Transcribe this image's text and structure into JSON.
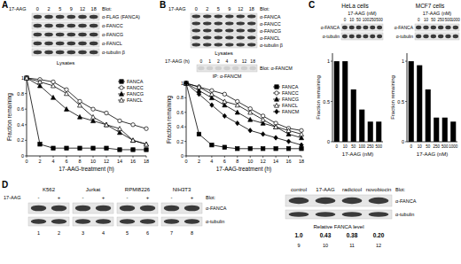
{
  "chart_data": [
    {
      "type": "line",
      "x_label": "17-AAG-treatment (h)",
      "y_label": "Fraction remaining",
      "x": [
        0,
        2,
        4,
        6,
        8,
        10,
        12,
        14,
        16,
        18
      ],
      "xlim": [
        0,
        18
      ],
      "xticks": [
        0,
        2,
        4,
        6,
        8,
        10,
        12,
        14,
        16,
        18
      ],
      "ylim": [
        0,
        1
      ],
      "yticks": [
        0,
        0.2,
        0.4,
        0.6,
        0.8,
        1
      ],
      "legend": "upper-right",
      "series": [
        {
          "name": "FANCA",
          "color": "#000000",
          "marker": "square",
          "line_style": "solid",
          "values": [
            1,
            0.15,
            0.1,
            0.1,
            0.1,
            0.1,
            0.1,
            0.08,
            0.08,
            0.08
          ]
        },
        {
          "name": "FANCC",
          "color": "#000000",
          "marker": "circle-open",
          "line_style": "solid",
          "values": [
            1,
            0.98,
            0.95,
            0.85,
            0.7,
            0.6,
            0.55,
            0.45,
            0.4,
            0.35
          ]
        },
        {
          "name": "FANCG",
          "color": "#000000",
          "marker": "triangle",
          "line_style": "solid",
          "values": [
            1,
            0.9,
            0.75,
            0.6,
            0.5,
            0.45,
            0.4,
            0.3,
            0.2,
            0.15
          ]
        },
        {
          "name": "FANCL",
          "color": "#000000",
          "marker": "triangle-open",
          "line_style": "solid",
          "values": [
            1,
            0.95,
            0.9,
            0.8,
            0.65,
            0.5,
            0.4,
            0.35,
            0.2,
            0.15
          ]
        }
      ]
    },
    {
      "type": "line",
      "x_label": "17-AAG-treatment (h)",
      "y_label": "Fraction remaining",
      "x": [
        0,
        2,
        4,
        6,
        8,
        10,
        12,
        14,
        16,
        18
      ],
      "xlim": [
        0,
        18
      ],
      "xticks": [
        0,
        2,
        4,
        6,
        8,
        10,
        12,
        14,
        16,
        18
      ],
      "ylim": [
        0,
        1
      ],
      "yticks": [
        0,
        0.2,
        0.4,
        0.6,
        0.8,
        1
      ],
      "legend": "upper-right",
      "series": [
        {
          "name": "FANCA",
          "color": "#000000",
          "marker": "square",
          "line_style": "solid",
          "values": [
            1,
            0.3,
            0.15,
            0.12,
            0.1,
            0.1,
            0.1,
            0.1,
            0.1,
            0.1
          ]
        },
        {
          "name": "FANCC",
          "color": "#000000",
          "marker": "circle-open",
          "line_style": "solid",
          "values": [
            1,
            0.95,
            0.9,
            0.85,
            0.75,
            0.65,
            0.55,
            0.45,
            0.38,
            0.35
          ]
        },
        {
          "name": "FANCG",
          "color": "#000000",
          "marker": "triangle",
          "line_style": "solid",
          "values": [
            1,
            0.9,
            0.8,
            0.7,
            0.6,
            0.5,
            0.45,
            0.4,
            0.3,
            0.25
          ]
        },
        {
          "name": "FANCL",
          "color": "#000000",
          "marker": "triangle-open",
          "line_style": "solid",
          "values": [
            1,
            0.95,
            0.85,
            0.75,
            0.7,
            0.6,
            0.5,
            0.4,
            0.35,
            0.3
          ]
        },
        {
          "name": "FANCM",
          "color": "#000000",
          "marker": "diamond",
          "line_style": "solid",
          "values": [
            1,
            0.85,
            0.7,
            0.55,
            0.45,
            0.35,
            0.3,
            0.25,
            0.2,
            0.15
          ]
        }
      ]
    },
    {
      "type": "bar",
      "title": "HeLa cells",
      "x_label": "17-AAG (nM)",
      "y_label": "Fraction remaining",
      "categories": [
        "0",
        "10",
        "50",
        "100",
        "250",
        "500"
      ],
      "values": [
        1,
        1,
        0.65,
        0.4,
        0.25,
        0.25
      ],
      "color": "#000000",
      "ylim": [
        0,
        1.1
      ],
      "yticks": [
        0,
        0.5,
        1
      ]
    },
    {
      "type": "bar",
      "title": "MCF7 cells",
      "x_label": "17-AAG (nM)",
      "y_label": "Fraction remaining",
      "categories": [
        "0",
        "10",
        "50",
        "250",
        "500",
        "1000"
      ],
      "values": [
        1,
        0.95,
        0.65,
        0.3,
        0.3,
        0.25
      ],
      "color": "#000000",
      "ylim": [
        0,
        1.1
      ],
      "yticks": [
        0,
        0.5,
        1
      ]
    }
  ],
  "panel_labels": [
    "A",
    "B",
    "C",
    "D"
  ],
  "blots": {
    "A": {
      "treatment": "17-AAG",
      "lanes": [
        "0",
        "2",
        "5",
        "9",
        "12",
        "18"
      ],
      "header": "Blot:",
      "rows": [
        "α-FLAG (FANCA)",
        "α-FANCC",
        "α-FANCG",
        "α-FANCL",
        "α-tubulin β"
      ],
      "footer": "Lysates"
    },
    "B": {
      "treatment": "17-AAG",
      "lanes": [
        "0",
        "2",
        "5",
        "9",
        "12",
        "18"
      ],
      "header": "Blot:",
      "rows": [
        "α-FANCA",
        "α-FANCC",
        "α-FANCG",
        "α-FANCL",
        "α-tubulin β"
      ],
      "footer": "Lysates",
      "ip": {
        "treatment": "17-AAG (h)",
        "lanes": [
          "0",
          "1",
          "2",
          "4",
          "8",
          "12",
          "18"
        ],
        "ip_label": "IP: α-FANCM",
        "blot_label": "Blot: α-FANCM"
      }
    },
    "C": [
      {
        "rows": [
          "α-FANCA",
          "α-tubulin"
        ]
      },
      {
        "rows": [
          "α-FANCA",
          "α-tubulin"
        ]
      }
    ],
    "D": {
      "treatment": "17-AAG",
      "cell_lines": [
        "K562",
        "Jurkat",
        "RPMI8226",
        "NIH3T3"
      ],
      "signs": [
        "-",
        "+",
        "-",
        "+",
        "-",
        "+",
        "-",
        "+"
      ],
      "header": "Blot:",
      "rows": [
        "α-FANCA",
        "α-tubulin"
      ],
      "lanes": [
        "1",
        "2",
        "3",
        "4",
        "5",
        "6",
        "7",
        "8"
      ],
      "drug_header": "Blot:",
      "drugs": [
        "control",
        "17-AAG",
        "radicicol",
        "novobiocin"
      ],
      "drug_rows": [
        "α-FANCA",
        "α-tubulin"
      ],
      "level_label": "Relative FANCA level",
      "levels": [
        "1.0",
        "0.43",
        "0.38",
        "0.20"
      ],
      "drug_lanes": [
        "9",
        "10",
        "11",
        "12"
      ]
    }
  }
}
